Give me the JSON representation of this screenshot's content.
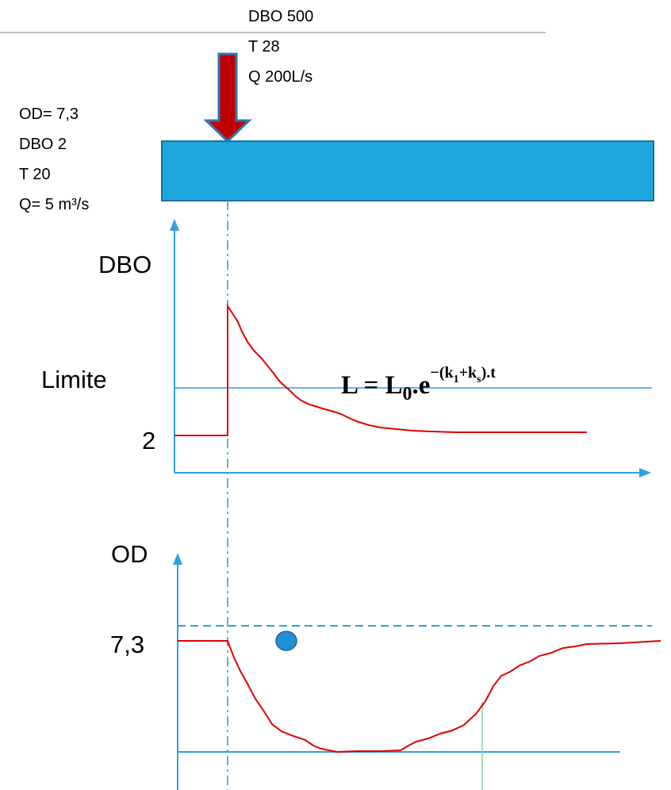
{
  "discharge": {
    "line1": "DBO 500",
    "line2": "T 28",
    "line3": "Q 200L/s"
  },
  "river": {
    "line1": "OD= 7,3",
    "line2": "DBO 2",
    "line3": "T 20",
    "line4": "Q= 5 m³/s"
  },
  "dbo_chart": {
    "ylabel": "DBO",
    "limit_label": "Limite",
    "baseline_label": "2",
    "formula": {
      "lhs": "L = L",
      "lhs_sub": "0",
      "dot_e": ".e",
      "exp_start": "−(k",
      "exp_sub1": "1",
      "exp_plus": "+k",
      "exp_sub2": "s",
      "exp_end": ").t"
    }
  },
  "od_chart": {
    "ylabel": "OD",
    "saturation_label": "7,3"
  },
  "colors": {
    "river_fill": "#1ea7dc",
    "river_border": "#1a6fa0",
    "arrow_fill": "#c00000",
    "arrow_border": "#2e75b6",
    "axis": "#2fa0dc",
    "curve": "#e00000",
    "marker": "#1e90d8",
    "marker_line": "#7fd0a0"
  }
}
